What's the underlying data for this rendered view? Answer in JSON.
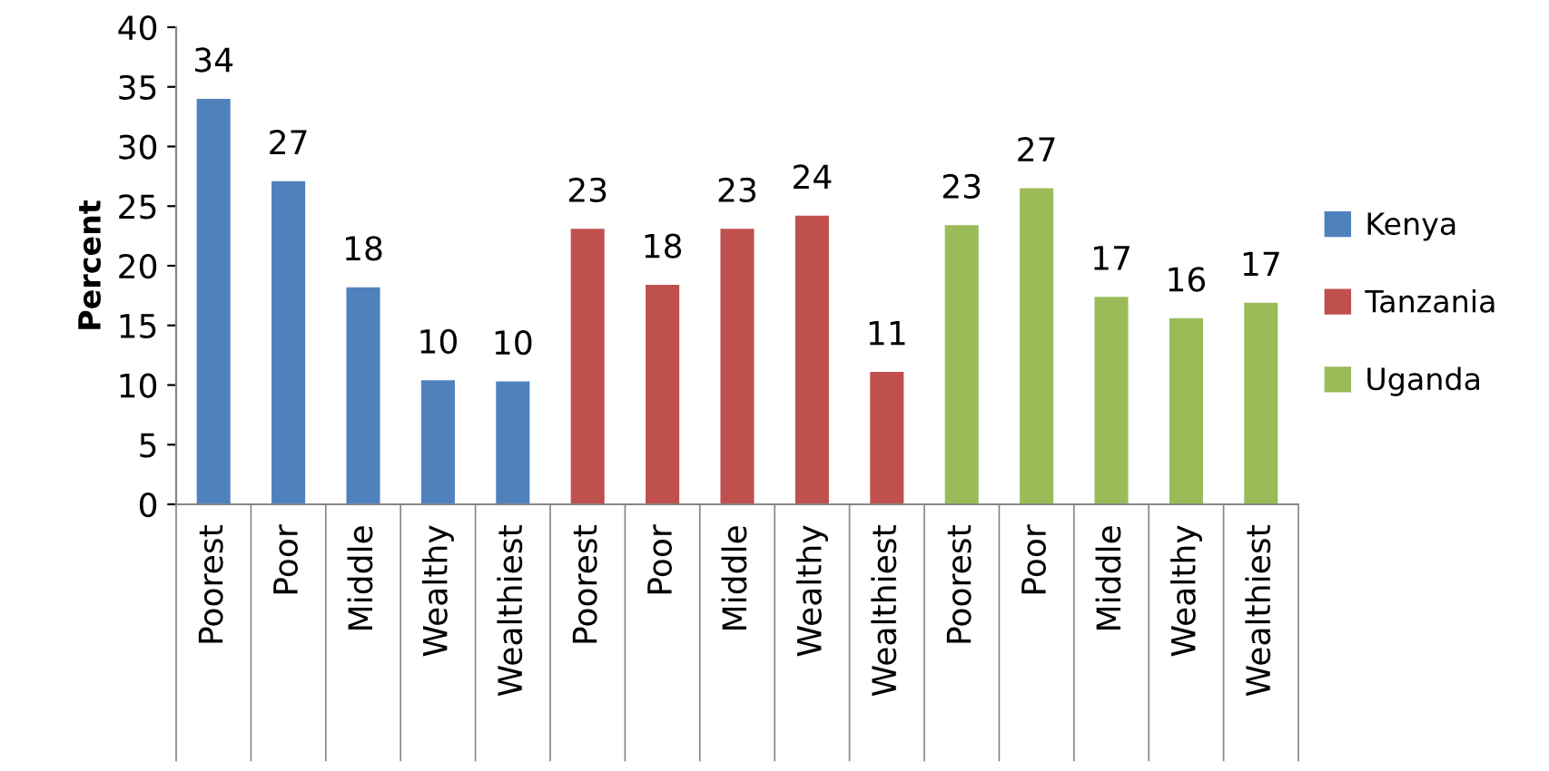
{
  "chart_data": {
    "type": "bar",
    "ylabel": "Percent",
    "categories": [
      "Poorest",
      "Poor",
      "Middle",
      "Wealthy",
      "Wealthiest",
      "Poorest",
      "Poor",
      "Middle",
      "Wealthy",
      "Wealthiest",
      "Poorest",
      "Poor",
      "Middle",
      "Wealthy",
      "Wealthiest"
    ],
    "series": [
      {
        "name": "Kenya",
        "color": "#4f81bd",
        "values": [
          34,
          27.1,
          18.2,
          10.4,
          10.3,
          null,
          null,
          null,
          null,
          null,
          null,
          null,
          null,
          null,
          null
        ],
        "value_labels": [
          "34",
          "27",
          "18",
          "10",
          "10",
          null,
          null,
          null,
          null,
          null,
          null,
          null,
          null,
          null,
          null
        ]
      },
      {
        "name": "Tanzania",
        "color": "#c0504d",
        "values": [
          null,
          null,
          null,
          null,
          null,
          23.1,
          18.4,
          23.1,
          24.2,
          11.1,
          null,
          null,
          null,
          null,
          null
        ],
        "value_labels": [
          null,
          null,
          null,
          null,
          null,
          "23",
          "18",
          "23",
          "24",
          "11",
          null,
          null,
          null,
          null,
          null
        ]
      },
      {
        "name": "Uganda",
        "color": "#9bbb59",
        "values": [
          null,
          null,
          null,
          null,
          null,
          null,
          null,
          null,
          null,
          null,
          23.4,
          26.5,
          17.4,
          15.6,
          16.9
        ],
        "value_labels": [
          null,
          null,
          null,
          null,
          null,
          null,
          null,
          null,
          null,
          null,
          "23",
          "27",
          "17",
          "16",
          "17"
        ]
      }
    ],
    "ylim": [
      0,
      40
    ],
    "yticks": [
      0,
      5,
      10,
      15,
      20,
      25,
      30,
      35,
      40
    ],
    "grid": false,
    "legend": "right"
  }
}
